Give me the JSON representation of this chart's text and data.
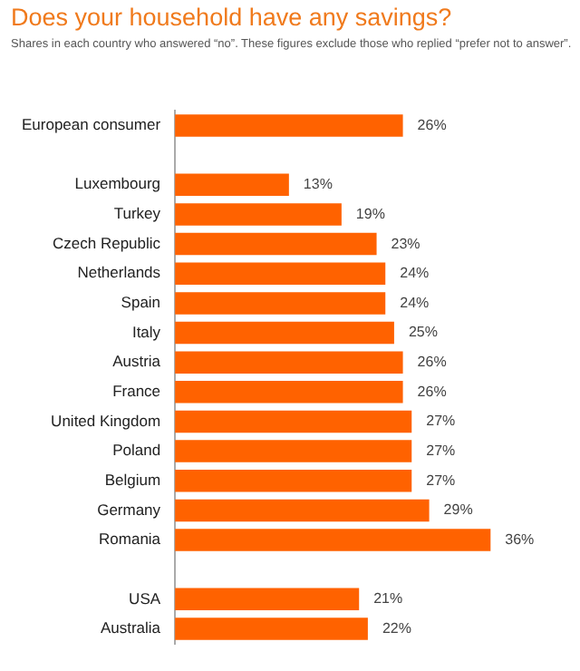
{
  "chart_data": {
    "type": "bar",
    "orientation": "horizontal",
    "title": "Does your household have any savings?",
    "subtitle": "Shares in each country who answered “no”. These figures exclude those who replied “prefer not to answer”.",
    "categories": [
      "European consumer",
      null,
      "Luxembourg",
      "Turkey",
      "Czech Republic",
      "Netherlands",
      "Spain",
      "Italy",
      "Austria",
      "France",
      "United Kingdom",
      "Poland",
      "Belgium",
      "Germany",
      "Romania",
      null,
      "USA",
      "Australia"
    ],
    "values": [
      26,
      null,
      13,
      19,
      23,
      24,
      24,
      25,
      26,
      26,
      27,
      27,
      27,
      29,
      36,
      null,
      21,
      22
    ],
    "value_labels": [
      "26%",
      null,
      "13%",
      "19%",
      "23%",
      "24%",
      "24%",
      "25%",
      "26%",
      "26%",
      "27%",
      "27%",
      "27%",
      "29%",
      "36%",
      null,
      "21%",
      "22%"
    ],
    "color": "#ff6200",
    "tick_labels": "y",
    "grid": false,
    "legend": false
  }
}
